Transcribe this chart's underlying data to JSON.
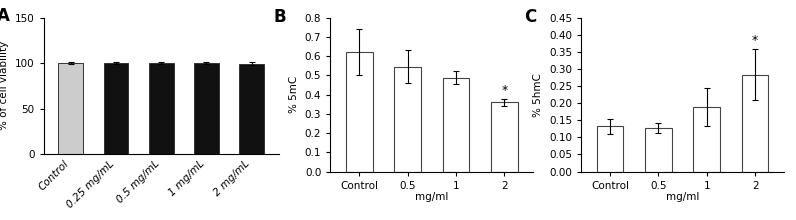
{
  "panel_A": {
    "categories": [
      "Control",
      "0.25 mg/mL",
      "0.5 mg/mL",
      "1 mg/mL",
      "2 mg/mL"
    ],
    "values": [
      100,
      100.5,
      100.5,
      100,
      99.5
    ],
    "errors": [
      1.5,
      1.2,
      1.2,
      1.2,
      1.2
    ],
    "bar_colors": [
      "#cccccc",
      "#111111",
      "#111111",
      "#111111",
      "#111111"
    ],
    "bar_edge": "#333333",
    "ylabel": "% of cell viability",
    "ylim": [
      0,
      150
    ],
    "yticks": [
      0,
      50,
      100,
      150
    ],
    "label": "A",
    "bar_width": 0.55
  },
  "panel_B": {
    "categories": [
      "Control",
      "0.5",
      "1",
      "2"
    ],
    "values": [
      0.62,
      0.545,
      0.488,
      0.36
    ],
    "errors": [
      0.12,
      0.085,
      0.032,
      0.018
    ],
    "bar_colors": [
      "#ffffff",
      "#ffffff",
      "#ffffff",
      "#ffffff"
    ],
    "edge_colors": [
      "#444444",
      "#444444",
      "#444444",
      "#444444"
    ],
    "ylabel": "% 5mC",
    "xlabel": "mg/ml",
    "ylim": [
      0.0,
      0.8
    ],
    "yticks": [
      0.0,
      0.1,
      0.2,
      0.3,
      0.4,
      0.5,
      0.6,
      0.7,
      0.8
    ],
    "label": "B",
    "sig": [
      false,
      false,
      false,
      true
    ],
    "bar_width": 0.55
  },
  "panel_C": {
    "categories": [
      "Control",
      "0.5",
      "1",
      "2"
    ],
    "values": [
      0.133,
      0.127,
      0.188,
      0.283
    ],
    "errors": [
      0.022,
      0.015,
      0.055,
      0.075
    ],
    "bar_colors": [
      "#ffffff",
      "#ffffff",
      "#ffffff",
      "#ffffff"
    ],
    "edge_colors": [
      "#444444",
      "#444444",
      "#444444",
      "#444444"
    ],
    "ylabel": "% 5hmC",
    "xlabel": "mg/ml",
    "ylim": [
      0.0,
      0.45
    ],
    "yticks": [
      0.0,
      0.05,
      0.1,
      0.15,
      0.2,
      0.25,
      0.3,
      0.35,
      0.4,
      0.45
    ],
    "label": "C",
    "sig": [
      false,
      false,
      false,
      true
    ],
    "bar_width": 0.55
  }
}
